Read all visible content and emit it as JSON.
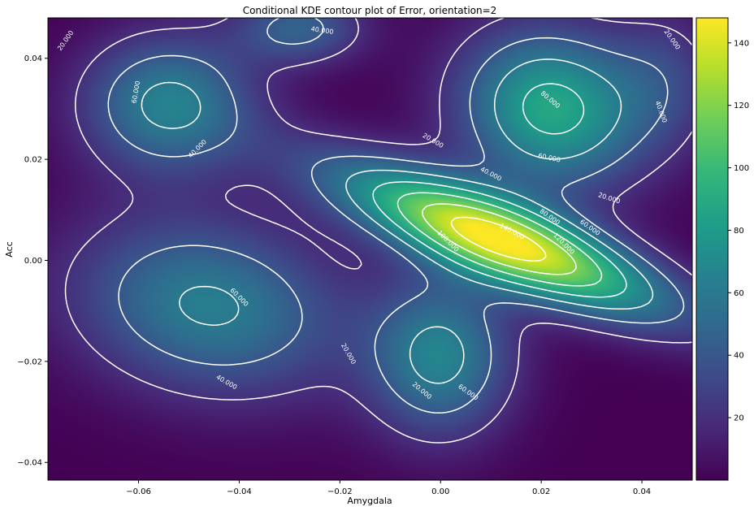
{
  "chart_data": {
    "type": "heatmap",
    "title": "Conditional KDE contour plot of Error, orientation=2",
    "xlabel": "Amygdala",
    "ylabel": "Acc",
    "xlim": [
      -0.078,
      0.05
    ],
    "ylim": [
      -0.0435,
      0.048
    ],
    "x_ticks": [
      -0.06,
      -0.04,
      -0.02,
      0.0,
      0.02,
      0.04
    ],
    "x_tick_labels": [
      "−0.06",
      "−0.04",
      "−0.02",
      "0.00",
      "0.02",
      "0.04"
    ],
    "y_ticks": [
      -0.04,
      -0.02,
      0.0,
      0.02,
      0.04
    ],
    "y_tick_labels": [
      "−0.04",
      "−0.02",
      "0.00",
      "0.02",
      "0.04"
    ],
    "colormap": "viridis",
    "colorbar": {
      "range": [
        0,
        148
      ],
      "ticks": [
        20,
        40,
        60,
        80,
        100,
        120,
        140
      ],
      "tick_labels": [
        "20",
        "40",
        "60",
        "80",
        "100",
        "120",
        "140"
      ]
    },
    "contour_levels": [
      20,
      40,
      60,
      80,
      100,
      120,
      140
    ],
    "contour_color": "#ffffff",
    "components": [
      {
        "x": 0.012,
        "y": 0.004,
        "peak": 147,
        "sx": 0.024,
        "sy": 0.0058,
        "rot_deg": -21
      },
      {
        "x": 0.022,
        "y": 0.03,
        "peak": 88,
        "sx": 0.013,
        "sy": 0.011,
        "rot_deg": -15
      },
      {
        "x": -0.054,
        "y": 0.031,
        "peak": 65,
        "sx": 0.012,
        "sy": 0.0095,
        "rot_deg": 0
      },
      {
        "x": -0.046,
        "y": -0.009,
        "peak": 63,
        "sx": 0.019,
        "sy": 0.012,
        "rot_deg": -10
      },
      {
        "x": 0.0,
        "y": -0.019,
        "peak": 65,
        "sx": 0.01,
        "sy": 0.011,
        "rot_deg": 0
      },
      {
        "x": -0.028,
        "y": 0.046,
        "peak": 45,
        "sx": 0.009,
        "sy": 0.005,
        "rot_deg": 0
      },
      {
        "x": 0.045,
        "y": 0.036,
        "peak": 25,
        "sx": 0.008,
        "sy": 0.01,
        "rot_deg": 0
      }
    ],
    "contour_labels": [
      {
        "text": "20.000",
        "x": -0.0745,
        "y": 0.0435,
        "rot": -55
      },
      {
        "text": "40.000",
        "x": -0.0235,
        "y": 0.0455,
        "rot": 8
      },
      {
        "text": "60.000",
        "x": -0.0605,
        "y": 0.0333,
        "rot": -80
      },
      {
        "text": "40.000",
        "x": -0.0483,
        "y": 0.0221,
        "rot": -45
      },
      {
        "text": "20.000",
        "x": 0.046,
        "y": 0.0437,
        "rot": 55
      },
      {
        "text": "80.000",
        "x": 0.0218,
        "y": 0.0318,
        "rot": 40
      },
      {
        "text": "40.000",
        "x": 0.0438,
        "y": 0.0294,
        "rot": 70
      },
      {
        "text": "60.000",
        "x": 0.0216,
        "y": 0.0203,
        "rot": 12
      },
      {
        "text": "20.000",
        "x": -0.0015,
        "y": 0.0237,
        "rot": 30
      },
      {
        "text": "40.000",
        "x": 0.01,
        "y": 0.0171,
        "rot": 28
      },
      {
        "text": "20.000",
        "x": 0.0335,
        "y": 0.0123,
        "rot": 18
      },
      {
        "text": "80.000",
        "x": 0.0217,
        "y": 0.0086,
        "rot": 35
      },
      {
        "text": "60.000",
        "x": 0.0297,
        "y": 0.0065,
        "rot": 35
      },
      {
        "text": "140.000",
        "x": 0.0142,
        "y": 0.0057,
        "rot": 28
      },
      {
        "text": "120.000",
        "x": 0.0245,
        "y": 0.0033,
        "rot": 45
      },
      {
        "text": "100.000",
        "x": 0.0015,
        "y": 0.0038,
        "rot": 45
      },
      {
        "text": "60.000",
        "x": -0.04,
        "y": -0.0073,
        "rot": 45
      },
      {
        "text": "20.000",
        "x": -0.0183,
        "y": -0.0185,
        "rot": 60
      },
      {
        "text": "40.000",
        "x": -0.0425,
        "y": -0.0241,
        "rot": 30
      },
      {
        "text": "60.000",
        "x": 0.0055,
        "y": -0.0261,
        "rot": 35
      },
      {
        "text": "20.000",
        "x": -0.0037,
        "y": -0.0258,
        "rot": 40
      }
    ]
  }
}
